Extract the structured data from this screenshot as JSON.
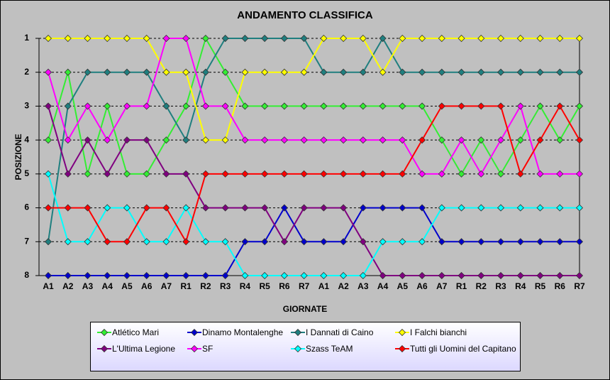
{
  "chart_data": {
    "type": "line",
    "title": "ANDAMENTO CLASSIFICA",
    "x_label": "GIORNATE",
    "y_label": "POSIZIONE",
    "categories": [
      "A1",
      "A2",
      "A3",
      "A4",
      "A5",
      "A6",
      "A7",
      "R1",
      "R2",
      "R3",
      "R4",
      "R5",
      "R6",
      "R7",
      "A1",
      "A2",
      "A3",
      "A4",
      "A5",
      "A6",
      "A7",
      "R1",
      "R2",
      "R3",
      "R4",
      "R5",
      "R6",
      "R7"
    ],
    "ylim": [
      8,
      1
    ],
    "yticks": [
      1,
      2,
      3,
      4,
      5,
      6,
      7,
      8
    ],
    "grid": true,
    "series": [
      {
        "name": "Atlético Mari",
        "color": "#33ee33",
        "values": [
          4,
          2,
          5,
          3,
          5,
          5,
          4,
          3,
          1,
          2,
          3,
          3,
          3,
          3,
          3,
          3,
          3,
          3,
          3,
          3,
          4,
          5,
          4,
          5,
          4,
          3,
          4,
          3
        ]
      },
      {
        "name": "Dinamo Montalenghe",
        "color": "#0000cc",
        "values": [
          8,
          8,
          8,
          8,
          8,
          8,
          8,
          8,
          8,
          8,
          7,
          7,
          6,
          7,
          7,
          7,
          6,
          6,
          6,
          6,
          7,
          7,
          7,
          7,
          7,
          7,
          7,
          7
        ]
      },
      {
        "name": "I Dannati di Caino",
        "color": "#1f7f7f",
        "values": [
          7,
          3,
          2,
          2,
          2,
          2,
          3,
          4,
          2,
          1,
          1,
          1,
          1,
          1,
          2,
          2,
          2,
          1,
          2,
          2,
          2,
          2,
          2,
          2,
          2,
          2,
          2,
          2
        ]
      },
      {
        "name": "I Falchi bianchi",
        "color": "#ffff00",
        "values": [
          1,
          1,
          1,
          1,
          1,
          1,
          2,
          2,
          4,
          4,
          2,
          2,
          2,
          2,
          1,
          1,
          1,
          2,
          1,
          1,
          1,
          1,
          1,
          1,
          1,
          1,
          1,
          1
        ]
      },
      {
        "name": "L'Ultima Legione",
        "color": "#800080",
        "values": [
          3,
          5,
          4,
          5,
          4,
          4,
          5,
          5,
          6,
          6,
          6,
          6,
          7,
          6,
          6,
          6,
          7,
          8,
          8,
          8,
          8,
          8,
          8,
          8,
          8,
          8,
          8,
          8
        ]
      },
      {
        "name": "SF",
        "color": "#ff00ff",
        "values": [
          2,
          4,
          3,
          4,
          3,
          3,
          1,
          1,
          3,
          3,
          4,
          4,
          4,
          4,
          4,
          4,
          4,
          4,
          4,
          5,
          5,
          4,
          5,
          4,
          3,
          5,
          5,
          5
        ]
      },
      {
        "name": "Szass TeAM",
        "color": "#00ffff",
        "values": [
          5,
          7,
          7,
          6,
          6,
          7,
          7,
          6,
          7,
          7,
          8,
          8,
          8,
          8,
          8,
          8,
          8,
          7,
          7,
          7,
          6,
          6,
          6,
          6,
          6,
          6,
          6,
          6
        ]
      },
      {
        "name": "Tutti gli Uomini del Capitano",
        "color": "#ff0000",
        "values": [
          6,
          6,
          6,
          7,
          7,
          6,
          6,
          7,
          5,
          5,
          5,
          5,
          5,
          5,
          5,
          5,
          5,
          5,
          5,
          4,
          3,
          3,
          3,
          3,
          5,
          4,
          3,
          4
        ]
      }
    ]
  }
}
